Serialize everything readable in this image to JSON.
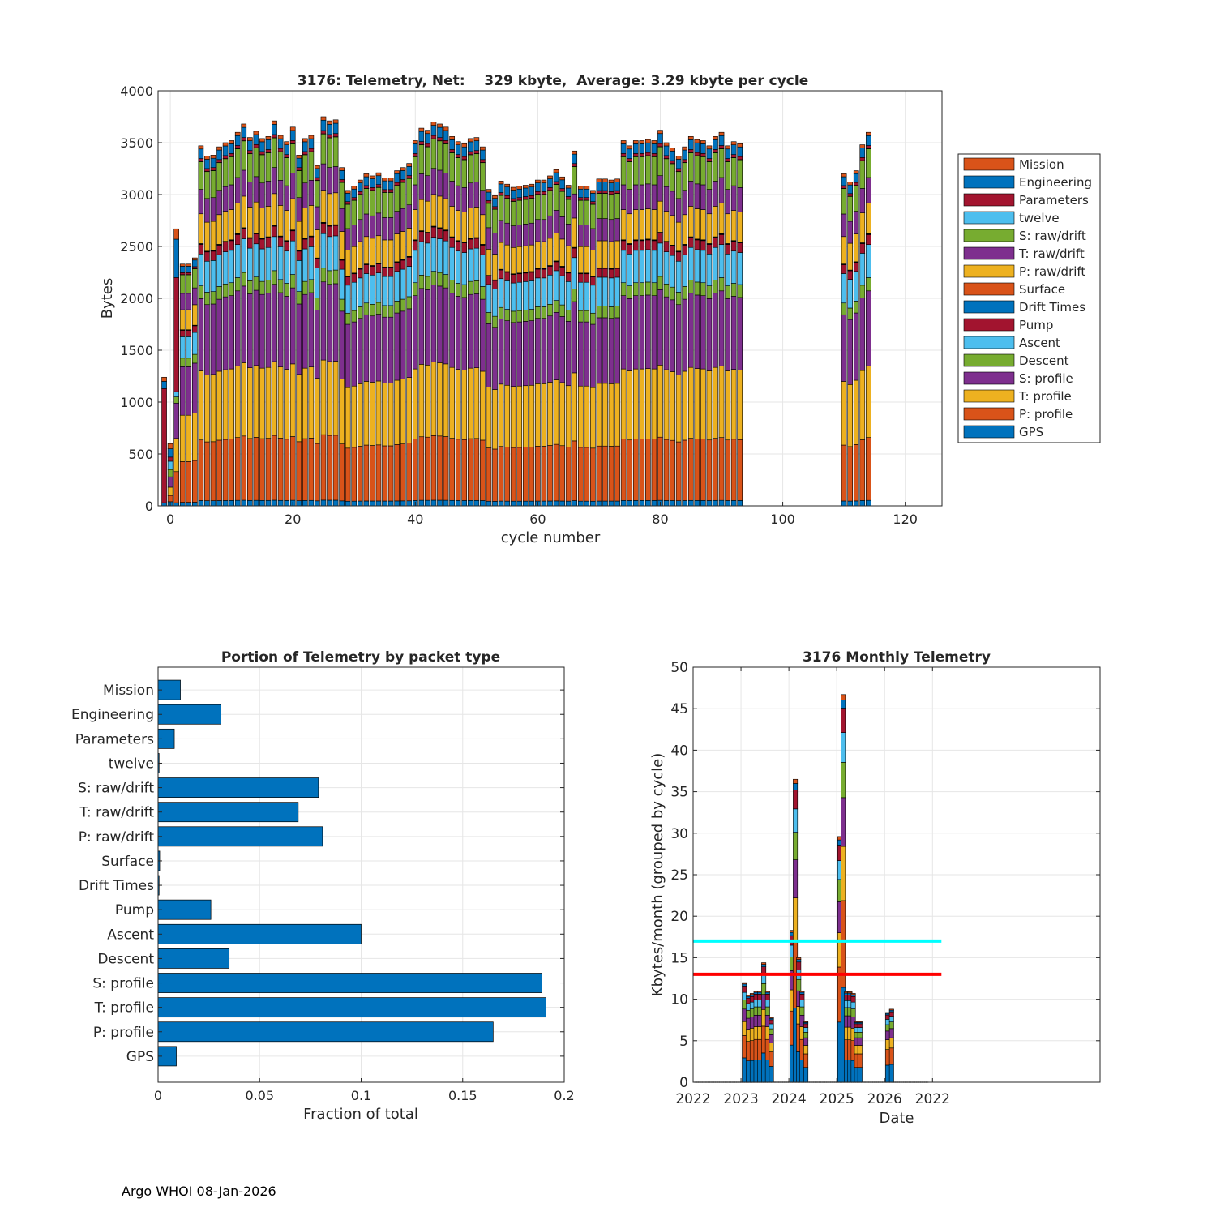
{
  "footer": "Argo WHOI 08-Jan-2026",
  "colors": {
    "Mission": "#D95319",
    "Engineering": "#0072BD",
    "Parameters": "#A2142F",
    "twelve": "#4DBEEE",
    "S: raw/drift": "#77AC30",
    "T: raw/drift": "#7E2F8E",
    "P: raw/drift": "#EDB120",
    "Surface": "#D95319",
    "Drift Times": "#0072BD",
    "Pump": "#A2142F",
    "Ascent": "#4DBEEE",
    "Descent": "#77AC30",
    "S: profile": "#7E2F8E",
    "T: profile": "#EDB120",
    "P: profile": "#D95319",
    "GPS": "#0072BD",
    "bar": "#0072BD",
    "cyan_line": "#00FFFF",
    "red_line": "#FF0000"
  },
  "chart_data": [
    {
      "type": "bar",
      "stacked": true,
      "title": "3176: Telemetry, Net:    329 kbyte,  Average: 3.29 kbyte per cycle",
      "xlabel": "cycle number",
      "ylabel": "Bytes",
      "xlim": [
        -2,
        126
      ],
      "ylim": [
        0,
        4000
      ],
      "xticks": [
        0,
        20,
        40,
        60,
        80,
        100,
        120
      ],
      "yticks": [
        0,
        500,
        1000,
        1500,
        2000,
        2500,
        3000,
        3500,
        4000
      ],
      "grid": true,
      "legend_position": "right",
      "legend": [
        "Mission",
        "Engineering",
        "Parameters",
        "twelve",
        "S: raw/drift",
        "T: raw/drift",
        "P: raw/drift",
        "Surface",
        "Drift Times",
        "Pump",
        "Ascent",
        "Descent",
        "S: profile",
        "T: profile",
        "P: profile",
        "GPS"
      ],
      "stack_order": [
        "GPS",
        "P: profile",
        "T: profile",
        "S: profile",
        "Descent",
        "Ascent",
        "Pump",
        "Drift Times",
        "Surface",
        "P: raw/drift",
        "T: raw/drift",
        "S: raw/drift",
        "twelve",
        "Parameters",
        "Engineering",
        "Mission"
      ],
      "cycles": [
        -1,
        0,
        1,
        2,
        3,
        4,
        5,
        6,
        7,
        8,
        9,
        10,
        11,
        12,
        13,
        14,
        15,
        16,
        17,
        18,
        19,
        20,
        21,
        22,
        23,
        24,
        25,
        26,
        27,
        28,
        29,
        30,
        31,
        32,
        33,
        34,
        35,
        36,
        37,
        38,
        39,
        40,
        41,
        42,
        43,
        44,
        45,
        46,
        47,
        48,
        49,
        50,
        51,
        52,
        53,
        54,
        55,
        56,
        57,
        58,
        59,
        60,
        61,
        62,
        63,
        64,
        65,
        66,
        67,
        68,
        69,
        70,
        71,
        72,
        73,
        74,
        75,
        76,
        77,
        78,
        79,
        80,
        81,
        82,
        83,
        84,
        85,
        86,
        87,
        88,
        89,
        90,
        91,
        92,
        93,
        110,
        111,
        112,
        113,
        114
      ],
      "totals": [
        1240,
        600,
        2670,
        2330,
        2330,
        2390,
        3470,
        3370,
        3380,
        3460,
        3500,
        3520,
        3600,
        3680,
        3550,
        3610,
        3540,
        3560,
        3710,
        3570,
        3510,
        3650,
        3380,
        3540,
        3570,
        3280,
        3750,
        3710,
        3720,
        3260,
        3040,
        3080,
        3140,
        3200,
        3180,
        3210,
        3160,
        3160,
        3230,
        3260,
        3300,
        3520,
        3640,
        3620,
        3700,
        3680,
        3650,
        3560,
        3510,
        3490,
        3540,
        3550,
        3460,
        3050,
        2990,
        3130,
        3100,
        3070,
        3080,
        3090,
        3100,
        3140,
        3140,
        3180,
        3240,
        3170,
        3090,
        3420,
        3080,
        3080,
        3040,
        3150,
        3150,
        3140,
        3150,
        3520,
        3470,
        3520,
        3520,
        3530,
        3520,
        3620,
        3500,
        3450,
        3370,
        3460,
        3560,
        3530,
        3520,
        3470,
        3560,
        3600,
        3470,
        3510,
        3490,
        3200,
        3120,
        3230,
        3480,
        3600
      ],
      "profile_template_bytes": {
        "GPS": 50,
        "P: profile": 570,
        "T: profile": 650,
        "S: profile": 680,
        "Descent": 120,
        "Ascent": 300,
        "Pump": 90,
        "Drift Times": 4,
        "Surface": 4,
        "P: raw/drift": 280,
        "T: raw/drift": 230,
        "S: raw/drift": 260,
        "twelve": 2,
        "Parameters": 28,
        "Engineering": 90,
        "Mission": 30
      }
    },
    {
      "type": "bar",
      "orientation": "horizontal",
      "title": "Portion of Telemetry by packet type",
      "xlabel": "Fraction of total",
      "ylabel": "",
      "xlim": [
        0,
        0.2
      ],
      "xticks": [
        0,
        0.05,
        0.1,
        0.15,
        0.2
      ],
      "xtick_labels": [
        "0",
        "0.05",
        "0.1",
        "0.15",
        "0.2"
      ],
      "grid": true,
      "categories": [
        "Mission",
        "Engineering",
        "Parameters",
        "twelve",
        "S: raw/drift",
        "T: raw/drift",
        "P: raw/drift",
        "Surface",
        "Drift Times",
        "Pump",
        "Ascent",
        "Descent",
        "S: profile",
        "T: profile",
        "P: profile",
        "GPS"
      ],
      "values": [
        0.011,
        0.031,
        0.008,
        0.0005,
        0.079,
        0.069,
        0.081,
        0.0008,
        0.0005,
        0.026,
        0.1,
        0.035,
        0.189,
        0.191,
        0.165,
        0.009
      ]
    },
    {
      "type": "bar",
      "stacked": true,
      "title": "3176 Monthly Telemetry",
      "xlabel": "Date",
      "ylabel": "Kbytes/month (grouped by cycle)",
      "xlim": [
        2022.0,
        2023.7
      ],
      "ylim": [
        0,
        50
      ],
      "yticks": [
        0,
        5,
        10,
        15,
        20,
        25,
        30,
        35,
        40,
        45,
        50
      ],
      "xtick_positions": [
        2022.0,
        2022.2,
        2022.4,
        2022.6,
        2022.8,
        2023.0
      ],
      "xtick_labels": [
        "2022",
        "2023",
        "2024",
        "2025",
        "2026",
        "2022"
      ],
      "grid": true,
      "hlines": [
        {
          "y": 17,
          "color": "cyan"
        },
        {
          "y": 13,
          "color": "red"
        }
      ],
      "months": [
        {
          "x": 2022.214,
          "total": 12.0
        },
        {
          "x": 2022.231,
          "total": 10.5
        },
        {
          "x": 2022.247,
          "total": 10.7
        },
        {
          "x": 2022.263,
          "total": 11.0
        },
        {
          "x": 2022.279,
          "total": 11.0
        },
        {
          "x": 2022.295,
          "total": 14.4
        },
        {
          "x": 2022.311,
          "total": 11.0
        },
        {
          "x": 2022.327,
          "total": 7.8
        },
        {
          "x": 2022.414,
          "total": 18.3
        },
        {
          "x": 2022.427,
          "total": 36.5
        },
        {
          "x": 2022.441,
          "total": 15.0
        },
        {
          "x": 2022.455,
          "total": 11.0
        },
        {
          "x": 2022.471,
          "total": 7.3
        },
        {
          "x": 2022.613,
          "total": 29.6
        },
        {
          "x": 2022.627,
          "total": 46.7
        },
        {
          "x": 2022.641,
          "total": 10.9
        },
        {
          "x": 2022.655,
          "total": 10.9
        },
        {
          "x": 2022.669,
          "total": 10.7
        },
        {
          "x": 2022.683,
          "total": 7.3
        },
        {
          "x": 2022.697,
          "total": 7.3
        },
        {
          "x": 2022.813,
          "total": 8.4
        },
        {
          "x": 2022.829,
          "total": 8.8
        }
      ]
    }
  ]
}
